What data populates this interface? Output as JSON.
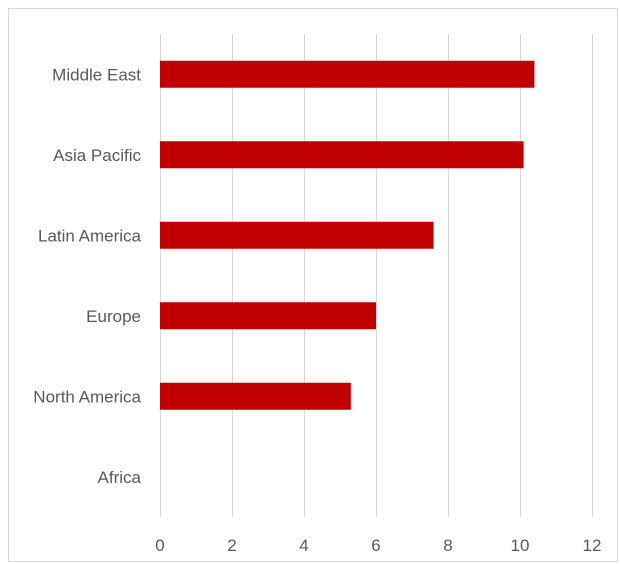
{
  "chart_data": {
    "type": "bar",
    "orientation": "horizontal",
    "title": "",
    "xlabel": "",
    "ylabel": "",
    "categories": [
      "Middle East",
      "Asia Pacific",
      "Latin America",
      "Europe",
      "North America",
      "Africa"
    ],
    "values": [
      10.4,
      10.1,
      7.6,
      6.0,
      5.3,
      0
    ],
    "xlim": [
      0,
      12
    ],
    "xticks": [
      0,
      2,
      4,
      6,
      8,
      10,
      12
    ],
    "grid": "vertical",
    "legend": "none",
    "bar_color": "#c00000"
  }
}
